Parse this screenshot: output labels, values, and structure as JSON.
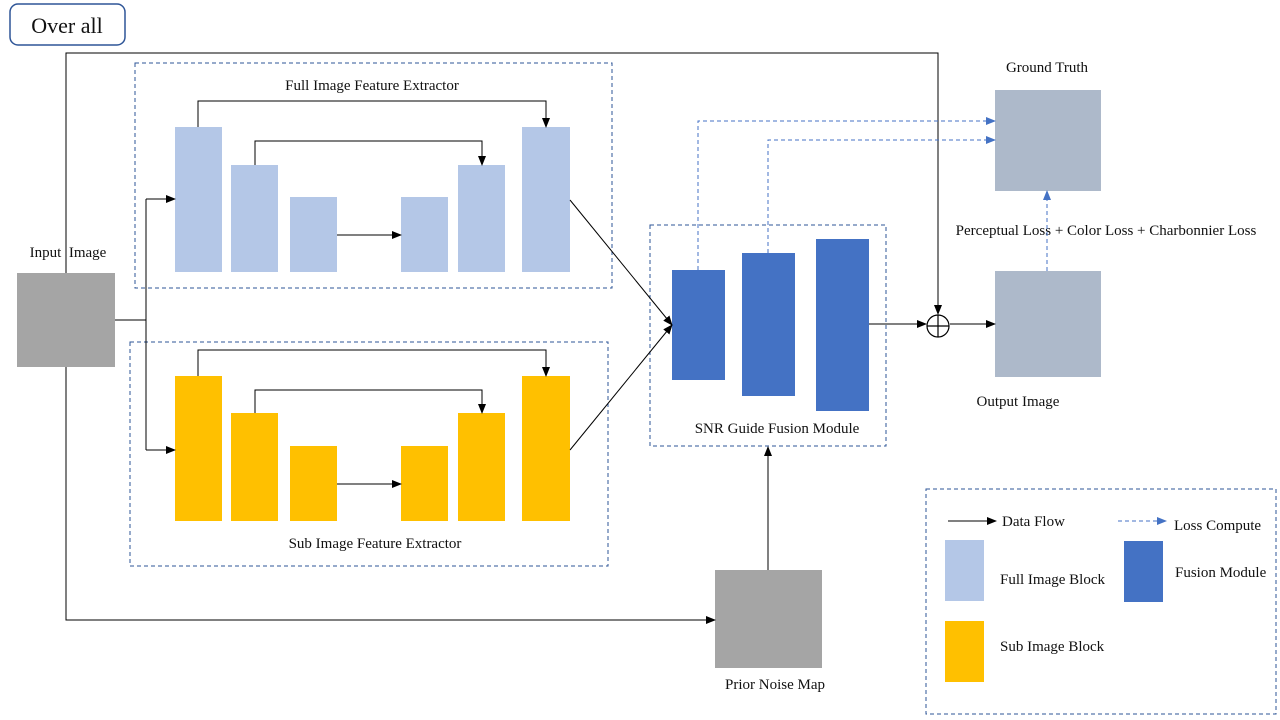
{
  "title": "Over all",
  "labels": {
    "input_image": "Input  Image",
    "full_extractor": "Full Image Feature Extractor",
    "sub_extractor": "Sub Image Feature Extractor",
    "fusion_module": "SNR Guide Fusion Module",
    "ground_truth": "Ground Truth",
    "loss": "Perceptual Loss + Color Loss + Charbonnier Loss",
    "output_image": "Output Image",
    "prior_noise_map": "Prior Noise Map"
  },
  "legend": {
    "data_flow": "Data Flow",
    "loss_compute": "Loss Compute",
    "full_block": "Full Image Block",
    "fusion_block": "Fusion Module",
    "sub_block": "Sub Image Block"
  },
  "colors": {
    "full_block": "#b4c7e7",
    "sub_block": "#ffc000",
    "fusion_block": "#4472c4",
    "image_gray": "#a5a5a5",
    "image_bluegray": "#adb9ca",
    "dashed_border": "#2e5597",
    "loss_arrow": "#4472c4",
    "data_arrow": "#000000"
  }
}
